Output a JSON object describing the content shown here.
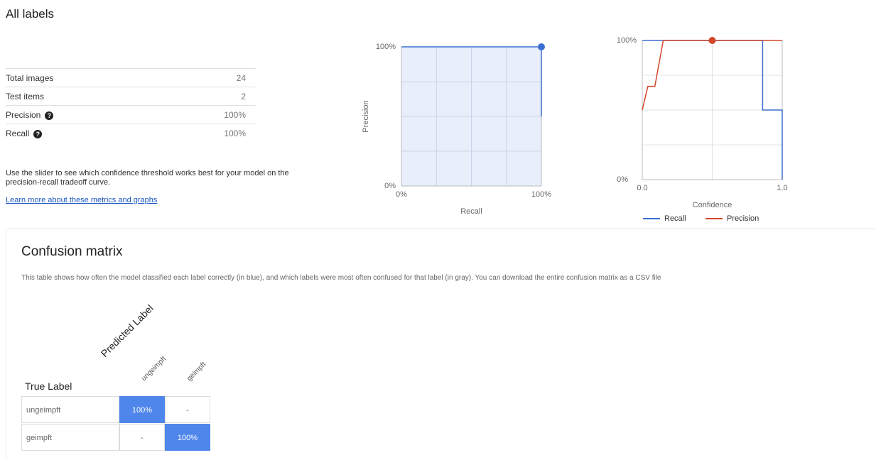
{
  "title": "All labels",
  "stats": [
    {
      "label": "Total images",
      "value": "24"
    },
    {
      "label": "Test items",
      "value": "2"
    },
    {
      "label": "Precision",
      "value": "100%"
    },
    {
      "label": "Recall",
      "value": "100%"
    }
  ],
  "description": "Use the slider to see which confidence threshold works best for your model on the precision-recall tradeoff curve.",
  "link": "Learn more about these metrics and graphs",
  "chart_data": [
    {
      "type": "line",
      "xlabel": "Recall",
      "ylabel": "Precision",
      "area_color": "#e8effb",
      "x": [
        0,
        100,
        100
      ],
      "series": [
        {
          "color": "#3c6fd1",
          "values": [
            100,
            100,
            50
          ]
        }
      ],
      "xlim": [
        0,
        100
      ],
      "ylim": [
        0,
        100
      ],
      "xticks": [
        {
          "value": 0,
          "label": "0%"
        },
        {
          "value": 100,
          "label": "100%"
        }
      ],
      "yticks": [
        {
          "value": 0,
          "label": "0%"
        },
        {
          "value": 100,
          "label": "100%"
        }
      ],
      "marker": {
        "x": 100,
        "y": 100,
        "color": "#3c6fd1"
      }
    },
    {
      "type": "line",
      "xlabel": "Confidence",
      "legend": "bottom",
      "series": [
        {
          "name": "Recall",
          "color": "#3c6fd1",
          "x": [
            0,
            0.86,
            0.86,
            1,
            1
          ],
          "values": [
            100,
            100,
            50,
            50,
            0
          ]
        },
        {
          "name": "Precision",
          "color": "#d2472a",
          "x": [
            0,
            0.04,
            0.09,
            0.15,
            1
          ],
          "values": [
            50,
            67,
            67,
            100,
            100
          ]
        }
      ],
      "xlim": [
        0,
        1
      ],
      "ylim": [
        0,
        100
      ],
      "xticks": [
        {
          "value": 0,
          "label": "0.0"
        },
        {
          "value": 1,
          "label": "1.0"
        }
      ],
      "yticks": [
        {
          "value": 0,
          "label": "0%"
        },
        {
          "value": 100,
          "label": "100%"
        }
      ],
      "marker": {
        "x": 0.5,
        "y": 100,
        "color": "#d2472a"
      }
    }
  ],
  "confusion_matrix": {
    "title": "Confusion matrix",
    "description": "This table shows how often the model classified each label correctly (in blue), and which labels were most often confused for that label (in gray). You can download the entire confusion matrix as a CSV file",
    "row_header": "True Label",
    "column_header": "Predicted Label",
    "columns": [
      "ungeimpft",
      "geimpft"
    ],
    "rows": [
      {
        "label": "ungeimpft",
        "cells": [
          "100%",
          "-"
        ]
      },
      {
        "label": "geimpft",
        "cells": [
          "-",
          "100%"
        ]
      }
    ]
  }
}
